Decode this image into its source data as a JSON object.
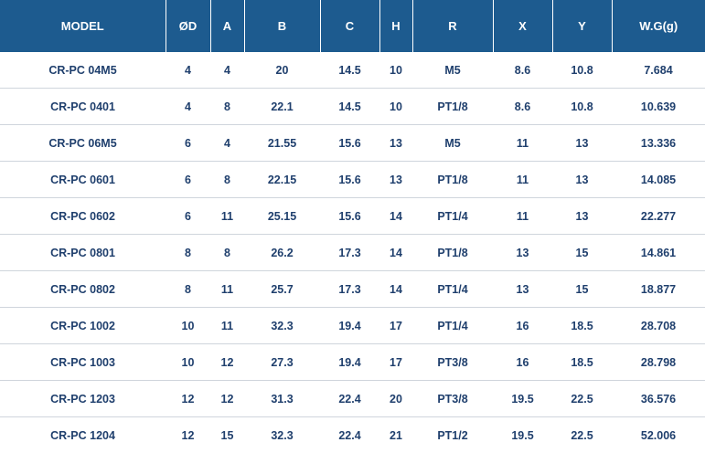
{
  "table": {
    "columns": [
      "MODEL",
      "ØD",
      "A",
      "B",
      "C",
      "H",
      "R",
      "X",
      "Y",
      "W.G(g)"
    ],
    "rows": [
      [
        "CR-PC 04M5",
        "4",
        "4",
        "20",
        "14.5",
        "10",
        "M5",
        "8.6",
        "10.8",
        "7.684"
      ],
      [
        "CR-PC 0401",
        "4",
        "8",
        "22.1",
        "14.5",
        "10",
        "PT1/8",
        "8.6",
        "10.8",
        "10.639"
      ],
      [
        "CR-PC 06M5",
        "6",
        "4",
        "21.55",
        "15.6",
        "13",
        "M5",
        "11",
        "13",
        "13.336"
      ],
      [
        "CR-PC 0601",
        "6",
        "8",
        "22.15",
        "15.6",
        "13",
        "PT1/8",
        "11",
        "13",
        "14.085"
      ],
      [
        "CR-PC 0602",
        "6",
        "11",
        "25.15",
        "15.6",
        "14",
        "PT1/4",
        "11",
        "13",
        "22.277"
      ],
      [
        "CR-PC 0801",
        "8",
        "8",
        "26.2",
        "17.3",
        "14",
        "PT1/8",
        "13",
        "15",
        "14.861"
      ],
      [
        "CR-PC 0802",
        "8",
        "11",
        "25.7",
        "17.3",
        "14",
        "PT1/4",
        "13",
        "15",
        "18.877"
      ],
      [
        "CR-PC 1002",
        "10",
        "11",
        "32.3",
        "19.4",
        "17",
        "PT1/4",
        "16",
        "18.5",
        "28.708"
      ],
      [
        "CR-PC 1003",
        "10",
        "12",
        "27.3",
        "19.4",
        "17",
        "PT3/8",
        "16",
        "18.5",
        "28.798"
      ],
      [
        "CR-PC 1203",
        "12",
        "12",
        "31.3",
        "22.4",
        "20",
        "PT3/8",
        "19.5",
        "22.5",
        "36.576"
      ],
      [
        "CR-PC 1204",
        "12",
        "15",
        "32.3",
        "22.4",
        "21",
        "PT1/2",
        "19.5",
        "22.5",
        "52.006"
      ]
    ]
  },
  "colors": {
    "header_bg": "#1d5b8f",
    "header_text": "#ffffff",
    "cell_text": "#1f3f6d",
    "row_divider": "#cfd5dc"
  }
}
